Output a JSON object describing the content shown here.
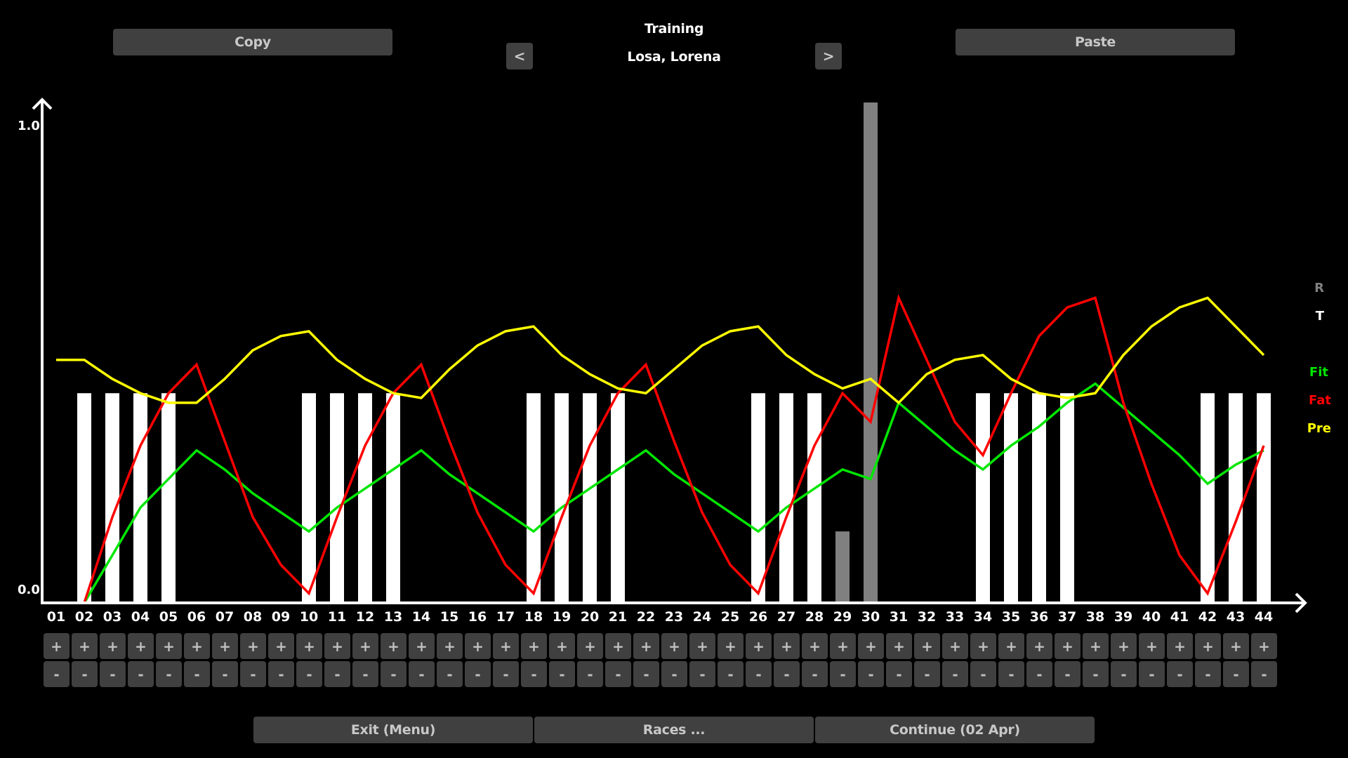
{
  "header": {
    "title": "Training",
    "rider_name": "Losa, Lorena",
    "prev_label": "<",
    "next_label": ">",
    "copy_label": "Copy",
    "paste_label": "Paste"
  },
  "footer": {
    "exit_label": "Exit (Menu)",
    "races_label": "Races ...",
    "continue_label": "Continue (02 Apr)"
  },
  "legend": {
    "r": {
      "label": "R",
      "color": "#808080"
    },
    "t": {
      "label": "T",
      "color": "#ffffff"
    },
    "fit": {
      "label": "Fit",
      "color": "#00e600"
    },
    "fat": {
      "label": "Fat",
      "color": "#ff0000"
    },
    "pre": {
      "label": "Pre",
      "color": "#ffff00"
    }
  },
  "axis": {
    "y_max_label": "1.0",
    "y_min_label": "0.0"
  },
  "controls": {
    "plus_label": "+",
    "minus_label": "-"
  },
  "chart_data": {
    "type": "line",
    "title": "Training",
    "xlabel": "",
    "ylabel": "",
    "ylim": [
      0.0,
      1.0
    ],
    "grid": false,
    "legend_position": "right",
    "categories": [
      "01",
      "02",
      "03",
      "04",
      "05",
      "06",
      "07",
      "08",
      "09",
      "10",
      "11",
      "12",
      "13",
      "14",
      "15",
      "16",
      "17",
      "18",
      "19",
      "20",
      "21",
      "22",
      "23",
      "24",
      "25",
      "26",
      "27",
      "28",
      "29",
      "30",
      "31",
      "32",
      "33",
      "34",
      "35",
      "36",
      "37",
      "38",
      "39",
      "40",
      "41",
      "42",
      "43",
      "44"
    ],
    "training_bars": [
      0,
      0.44,
      0.44,
      0.44,
      0.44,
      0,
      0,
      0,
      0,
      0.44,
      0.44,
      0.44,
      0.44,
      0,
      0,
      0,
      0,
      0.44,
      0.44,
      0.44,
      0.44,
      0,
      0,
      0,
      0,
      0.44,
      0.44,
      0.44,
      0,
      0,
      0,
      0,
      0,
      0.44,
      0.44,
      0.44,
      0.44,
      0,
      0,
      0,
      0,
      0.44,
      0.44,
      0.44
    ],
    "race_bars": [
      0,
      0,
      0,
      0,
      0,
      0,
      0,
      0,
      0,
      0,
      0,
      0,
      0,
      0,
      0,
      0,
      0,
      0,
      0,
      0,
      0,
      0,
      0,
      0,
      0,
      0,
      0,
      0,
      0.15,
      1.05,
      0,
      0,
      0,
      0,
      0,
      0,
      0,
      0,
      0,
      0,
      0,
      0,
      0,
      0
    ],
    "series": [
      {
        "name": "Fit",
        "color": "#00e600",
        "values": [
          null,
          0.0,
          0.1,
          0.2,
          0.26,
          0.32,
          0.28,
          0.23,
          0.19,
          0.15,
          0.2,
          0.24,
          0.28,
          0.32,
          0.27,
          0.23,
          0.19,
          0.15,
          0.2,
          0.24,
          0.28,
          0.32,
          0.27,
          0.23,
          0.19,
          0.15,
          0.2,
          0.24,
          0.28,
          0.26,
          0.42,
          0.37,
          0.32,
          0.28,
          0.33,
          0.37,
          0.42,
          0.46,
          0.41,
          0.36,
          0.31,
          0.25,
          0.29,
          0.32
        ]
      },
      {
        "name": "Fat",
        "color": "#ff0000",
        "values": [
          0.0,
          0.0,
          0.18,
          0.33,
          0.44,
          0.5,
          0.34,
          0.18,
          0.08,
          0.02,
          0.18,
          0.33,
          0.44,
          0.5,
          0.34,
          0.19,
          0.08,
          0.02,
          0.18,
          0.33,
          0.44,
          0.5,
          0.34,
          0.19,
          0.08,
          0.02,
          0.18,
          0.33,
          0.44,
          0.38,
          0.64,
          0.51,
          0.38,
          0.31,
          0.44,
          0.56,
          0.62,
          0.64,
          0.42,
          0.25,
          0.1,
          0.02,
          0.17,
          0.33
        ]
      },
      {
        "name": "Pre",
        "color": "#ffff00",
        "values": [
          0.51,
          0.51,
          0.47,
          0.44,
          0.42,
          0.42,
          0.47,
          0.53,
          0.56,
          0.57,
          0.51,
          0.47,
          0.44,
          0.43,
          0.49,
          0.54,
          0.57,
          0.58,
          0.52,
          0.48,
          0.45,
          0.44,
          0.49,
          0.54,
          0.57,
          0.58,
          0.52,
          0.48,
          0.45,
          0.47,
          0.42,
          0.48,
          0.51,
          0.52,
          0.47,
          0.44,
          0.43,
          0.44,
          0.52,
          0.58,
          0.62,
          0.64,
          0.58,
          0.52
        ]
      }
    ]
  }
}
